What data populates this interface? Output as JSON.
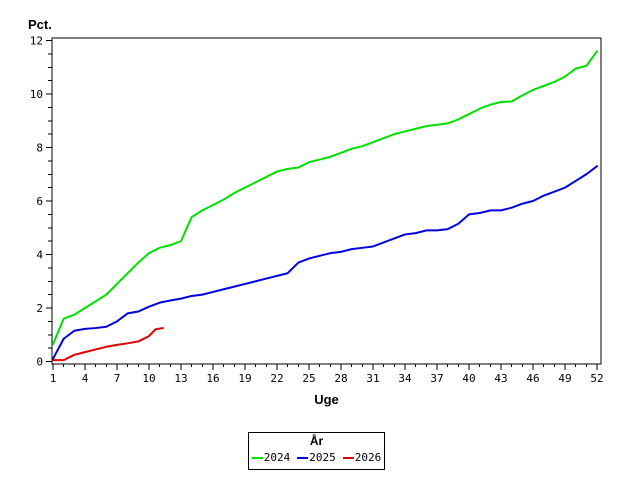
{
  "chart_data": {
    "type": "line",
    "title": "",
    "ylabel": "Pct.",
    "xlabel": "Uge",
    "xlim": [
      1,
      52
    ],
    "ylim": [
      0,
      12
    ],
    "x_major_ticks": [
      1,
      4,
      7,
      10,
      13,
      16,
      19,
      22,
      25,
      28,
      31,
      34,
      37,
      40,
      43,
      46,
      49,
      52
    ],
    "x_minor_step": 1,
    "y_major_ticks": [
      0,
      2,
      4,
      6,
      8,
      10,
      12
    ],
    "y_minor_step": 0.5,
    "grid": false,
    "axis_color": "#000000",
    "legend": {
      "title": "År",
      "position": "bottom-center"
    },
    "x": [
      1,
      2,
      3,
      4,
      5,
      6,
      7,
      8,
      9,
      10,
      11,
      12,
      13,
      14,
      15,
      16,
      17,
      18,
      19,
      20,
      21,
      22,
      23,
      24,
      25,
      26,
      27,
      28,
      29,
      30,
      31,
      32,
      33,
      34,
      35,
      36,
      37,
      38,
      39,
      40,
      41,
      42,
      43,
      44,
      45,
      46,
      47,
      48,
      49,
      50,
      51,
      52
    ],
    "series": [
      {
        "name": "2024",
        "color": "#00e000",
        "values": [
          0.65,
          1.6,
          1.75,
          2.0,
          2.25,
          2.5,
          2.9,
          3.3,
          3.7,
          4.05,
          4.25,
          4.35,
          4.5,
          5.4,
          5.65,
          5.85,
          6.05,
          6.3,
          6.5,
          6.7,
          6.9,
          7.1,
          7.2,
          7.25,
          7.45,
          7.55,
          7.65,
          7.8,
          7.95,
          8.05,
          8.2,
          8.35,
          8.5,
          8.6,
          8.7,
          8.8,
          8.85,
          8.9,
          9.05,
          9.25,
          9.45,
          9.6,
          9.7,
          9.72,
          9.95,
          10.15,
          10.3,
          10.45,
          10.65,
          10.95,
          11.05,
          11.6
        ]
      },
      {
        "name": "2025",
        "color": "#0000e0",
        "values": [
          0.1,
          0.85,
          1.15,
          1.22,
          1.25,
          1.3,
          1.5,
          1.8,
          1.87,
          2.05,
          2.2,
          2.28,
          2.35,
          2.45,
          2.5,
          2.6,
          2.7,
          2.8,
          2.9,
          3.0,
          3.1,
          3.2,
          3.3,
          3.7,
          3.85,
          3.95,
          4.05,
          4.1,
          4.2,
          4.25,
          4.3,
          4.45,
          4.6,
          4.75,
          4.8,
          4.9,
          4.9,
          4.95,
          5.15,
          5.5,
          5.55,
          5.65,
          5.65,
          5.75,
          5.9,
          6.0,
          6.2,
          6.35,
          6.5,
          6.75,
          7.0,
          7.3
        ]
      },
      {
        "name": "2026",
        "color": "#e00000",
        "x": [
          1,
          2,
          3,
          4,
          5,
          6,
          7,
          8,
          9,
          10,
          10.6,
          11.3
        ],
        "values": [
          0.05,
          0.05,
          0.25,
          0.35,
          0.45,
          0.55,
          0.62,
          0.68,
          0.75,
          0.95,
          1.2,
          1.25
        ]
      }
    ]
  }
}
